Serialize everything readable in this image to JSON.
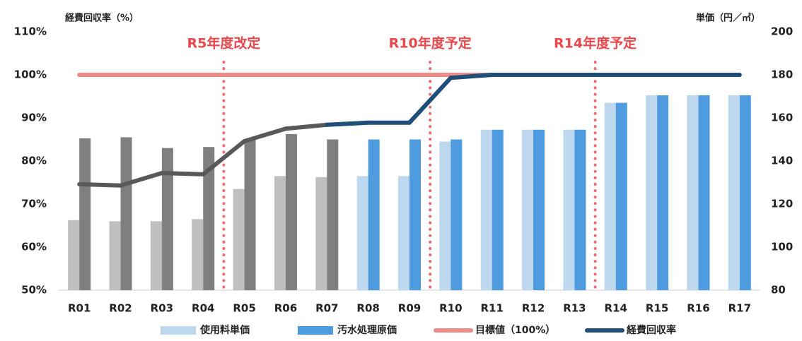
{
  "chart_data": {
    "type": "bar_line",
    "y_title": "経費回収率（%）",
    "y2_title": "単価（円／㎥）",
    "categories": [
      "R01",
      "R02",
      "R03",
      "R04",
      "R05",
      "R06",
      "R07",
      "R08",
      "R09",
      "R10",
      "R11",
      "R12",
      "R13",
      "R14",
      "R15",
      "R16",
      "R17"
    ],
    "series": [
      {
        "name": "使用料単価",
        "type": "bar",
        "axis": "y2",
        "color": "#bdd7ee",
        "colors": [
          "#bfbfbf",
          "#bfbfbf",
          "#bfbfbf",
          "#bfbfbf",
          "#bfbfbf",
          "#bfbfbf",
          "#bfbfbf",
          "#bdd7ee",
          "#bdd7ee",
          "#bdd7ee",
          "#bdd7ee",
          "#bdd7ee",
          "#bdd7ee",
          "#bdd7ee",
          "#bdd7ee",
          "#bdd7ee",
          "#bdd7ee"
        ],
        "values": [
          112.5,
          112,
          112,
          113,
          127,
          133,
          132.5,
          133,
          133,
          149,
          154.5,
          154.5,
          154.5,
          167,
          170.5,
          170.5,
          170.5
        ]
      },
      {
        "name": "汚水処理原価",
        "type": "bar",
        "axis": "y2",
        "color": "#4f9be0",
        "colors": [
          "#7f7f7f",
          "#7f7f7f",
          "#7f7f7f",
          "#7f7f7f",
          "#7f7f7f",
          "#7f7f7f",
          "#7f7f7f",
          "#4f9be0",
          "#4f9be0",
          "#4f9be0",
          "#4f9be0",
          "#4f9be0",
          "#4f9be0",
          "#4f9be0",
          "#4f9be0",
          "#4f9be0",
          "#4f9be0"
        ],
        "values": [
          150.5,
          151,
          146,
          146.5,
          150,
          152.5,
          150,
          150,
          150,
          150,
          154.5,
          154.5,
          154.5,
          167,
          170.5,
          170.5,
          170.5
        ]
      },
      {
        "name": "目標値（100%）",
        "type": "line",
        "color": "#f08a84",
        "values": [
          100,
          100,
          100,
          100,
          100,
          100,
          100,
          100,
          100,
          100,
          100,
          100,
          100,
          100,
          100,
          100,
          100
        ]
      },
      {
        "name": "経費回収率",
        "type": "line",
        "color": "#1f4e79",
        "colors": [
          "#595959",
          "#595959",
          "#595959",
          "#595959",
          "#595959",
          "#595959",
          "#1f4e79",
          "#1f4e79",
          "#1f4e79",
          "#1f4e79",
          "#1f4e79",
          "#1f4e79",
          "#1f4e79",
          "#1f4e79",
          "#1f4e79",
          "#1f4e79",
          "#1f4e79"
        ],
        "values": [
          74.6,
          74.3,
          77.2,
          76.9,
          84.6,
          87.5,
          88.4,
          88.9,
          88.9,
          99.3,
          100,
          100,
          100,
          100,
          100,
          100,
          100
        ]
      }
    ],
    "annotations": [
      {
        "text": "R5年度改定",
        "category": "R05"
      },
      {
        "text": "R10年度予定",
        "category": "R10"
      },
      {
        "text": "R14年度予定",
        "category": "R14"
      }
    ],
    "ylim": [
      50,
      110
    ],
    "yticks": [
      {
        "value": 50,
        "label": "50%"
      },
      {
        "value": 60,
        "label": "60%"
      },
      {
        "value": 70,
        "label": "70%"
      },
      {
        "value": 80,
        "label": "80%"
      },
      {
        "value": 90,
        "label": "90%"
      },
      {
        "value": 100,
        "label": "100%"
      },
      {
        "value": 110,
        "label": "110%"
      }
    ],
    "y2lim": [
      80,
      200
    ],
    "y2ticks": [
      80,
      100,
      120,
      140,
      160,
      180,
      200
    ],
    "legend": "bottom"
  }
}
